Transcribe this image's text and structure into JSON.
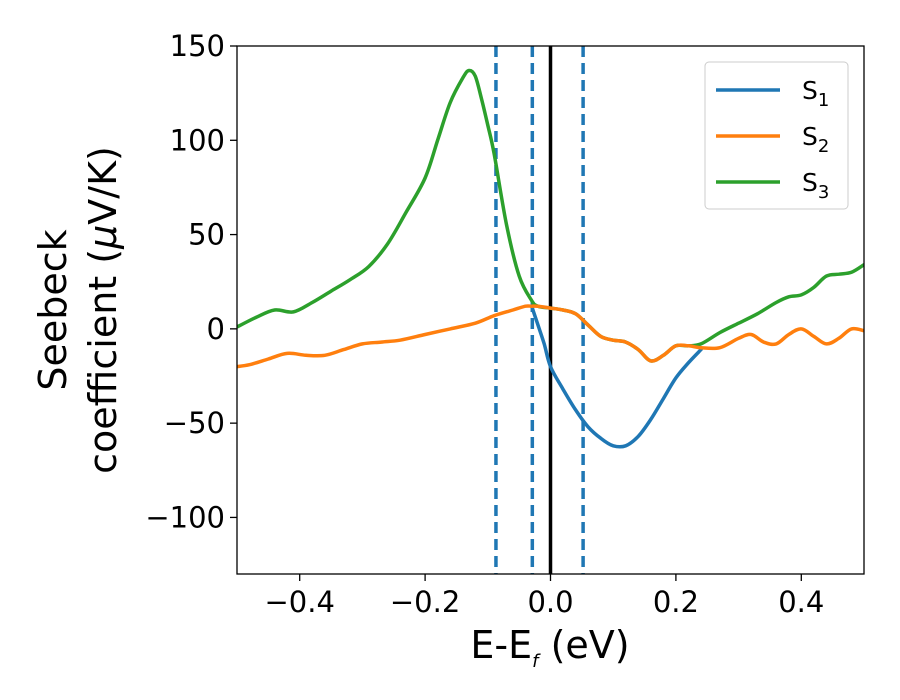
{
  "chart_data": {
    "type": "line",
    "xlabel": {
      "main": "E-E",
      "sub": "f",
      "unit": " (eV)"
    },
    "ylabel": {
      "line1": "Seebeck",
      "line2_prefix": "coefficient  (",
      "mu": "μ",
      "line2_suffix": "V/K)"
    },
    "xlim": [
      -0.5,
      0.5
    ],
    "ylim": [
      -130,
      150
    ],
    "xticks": [
      -0.4,
      -0.2,
      0.0,
      0.2,
      0.4
    ],
    "xtick_labels": [
      "−0.4",
      "−0.2",
      "0.0",
      "0.2",
      "0.4"
    ],
    "yticks": [
      -100,
      -50,
      0,
      50,
      100,
      150
    ],
    "ytick_labels": [
      "−100",
      "−50",
      "0",
      "50",
      "100",
      "150"
    ],
    "grid": false,
    "legend_position": "top-right",
    "vertical_lines": [
      {
        "x": -0.087,
        "style": "dashed",
        "color": "#1f77b4"
      },
      {
        "x": -0.029,
        "style": "dashed",
        "color": "#1f77b4"
      },
      {
        "x": 0.0,
        "style": "solid",
        "color": "#000000"
      },
      {
        "x": 0.052,
        "style": "dashed",
        "color": "#1f77b4"
      }
    ],
    "series": [
      {
        "name": "S",
        "sub": "1",
        "color": "#1f77b4",
        "points": [
          [
            -0.03,
            12
          ],
          [
            -0.02,
            2
          ],
          [
            -0.01,
            -8
          ],
          [
            0.0,
            -20
          ],
          [
            0.02,
            -32
          ],
          [
            0.04,
            -43
          ],
          [
            0.06,
            -52
          ],
          [
            0.08,
            -58
          ],
          [
            0.1,
            -62
          ],
          [
            0.12,
            -62
          ],
          [
            0.14,
            -57
          ],
          [
            0.16,
            -48
          ],
          [
            0.18,
            -37
          ],
          [
            0.2,
            -26
          ],
          [
            0.22,
            -18
          ],
          [
            0.24,
            -11
          ]
        ]
      },
      {
        "name": "S",
        "sub": "2",
        "color": "#ff7f0e",
        "points": [
          [
            -0.5,
            -20
          ],
          [
            -0.48,
            -19
          ],
          [
            -0.45,
            -16
          ],
          [
            -0.42,
            -13
          ],
          [
            -0.39,
            -14
          ],
          [
            -0.36,
            -14
          ],
          [
            -0.33,
            -11
          ],
          [
            -0.3,
            -8
          ],
          [
            -0.27,
            -7
          ],
          [
            -0.24,
            -6
          ],
          [
            -0.2,
            -3
          ],
          [
            -0.16,
            0
          ],
          [
            -0.12,
            3
          ],
          [
            -0.09,
            7
          ],
          [
            -0.06,
            10
          ],
          [
            -0.04,
            12
          ],
          [
            -0.03,
            12
          ],
          [
            -0.02,
            12
          ],
          [
            0.0,
            11
          ],
          [
            0.02,
            10
          ],
          [
            0.04,
            8
          ],
          [
            0.06,
            2
          ],
          [
            0.08,
            -4
          ],
          [
            0.1,
            -6
          ],
          [
            0.12,
            -7
          ],
          [
            0.14,
            -11
          ],
          [
            0.16,
            -17
          ],
          [
            0.18,
            -14
          ],
          [
            0.2,
            -9
          ],
          [
            0.22,
            -9
          ],
          [
            0.24,
            -10
          ],
          [
            0.27,
            -10
          ],
          [
            0.3,
            -5
          ],
          [
            0.32,
            -3
          ],
          [
            0.34,
            -7
          ],
          [
            0.36,
            -8
          ],
          [
            0.38,
            -3
          ],
          [
            0.4,
            0
          ],
          [
            0.42,
            -4
          ],
          [
            0.44,
            -8
          ],
          [
            0.46,
            -5
          ],
          [
            0.48,
            0
          ],
          [
            0.5,
            -1
          ]
        ]
      },
      {
        "name": "S",
        "sub": "3",
        "color": "#2ca02c",
        "points": [
          [
            -0.5,
            1
          ],
          [
            -0.47,
            6
          ],
          [
            -0.44,
            10
          ],
          [
            -0.41,
            9
          ],
          [
            -0.38,
            14
          ],
          [
            -0.35,
            20
          ],
          [
            -0.32,
            26
          ],
          [
            -0.29,
            33
          ],
          [
            -0.26,
            45
          ],
          [
            -0.23,
            62
          ],
          [
            -0.2,
            80
          ],
          [
            -0.18,
            100
          ],
          [
            -0.16,
            120
          ],
          [
            -0.14,
            133
          ],
          [
            -0.13,
            137
          ],
          [
            -0.12,
            134
          ],
          [
            -0.11,
            122
          ],
          [
            -0.1,
            108
          ],
          [
            -0.09,
            93
          ],
          [
            -0.07,
            55
          ],
          [
            -0.05,
            28
          ],
          [
            -0.03,
            15
          ],
          [
            -0.02,
            12
          ],
          [
            0.0,
            11
          ],
          [
            0.02,
            10
          ],
          [
            0.04,
            8
          ],
          [
            0.06,
            2
          ],
          [
            0.08,
            -4
          ],
          [
            0.1,
            -6
          ],
          [
            0.12,
            -7
          ],
          [
            0.14,
            -11
          ],
          [
            0.16,
            -17
          ],
          [
            0.18,
            -14
          ],
          [
            0.2,
            -9
          ],
          [
            0.22,
            -9
          ],
          [
            0.24,
            -8
          ],
          [
            0.27,
            -2
          ],
          [
            0.3,
            3
          ],
          [
            0.33,
            8
          ],
          [
            0.36,
            14
          ],
          [
            0.38,
            17
          ],
          [
            0.4,
            18
          ],
          [
            0.42,
            22
          ],
          [
            0.44,
            28
          ],
          [
            0.46,
            29
          ],
          [
            0.48,
            30
          ],
          [
            0.5,
            34
          ]
        ]
      }
    ]
  }
}
